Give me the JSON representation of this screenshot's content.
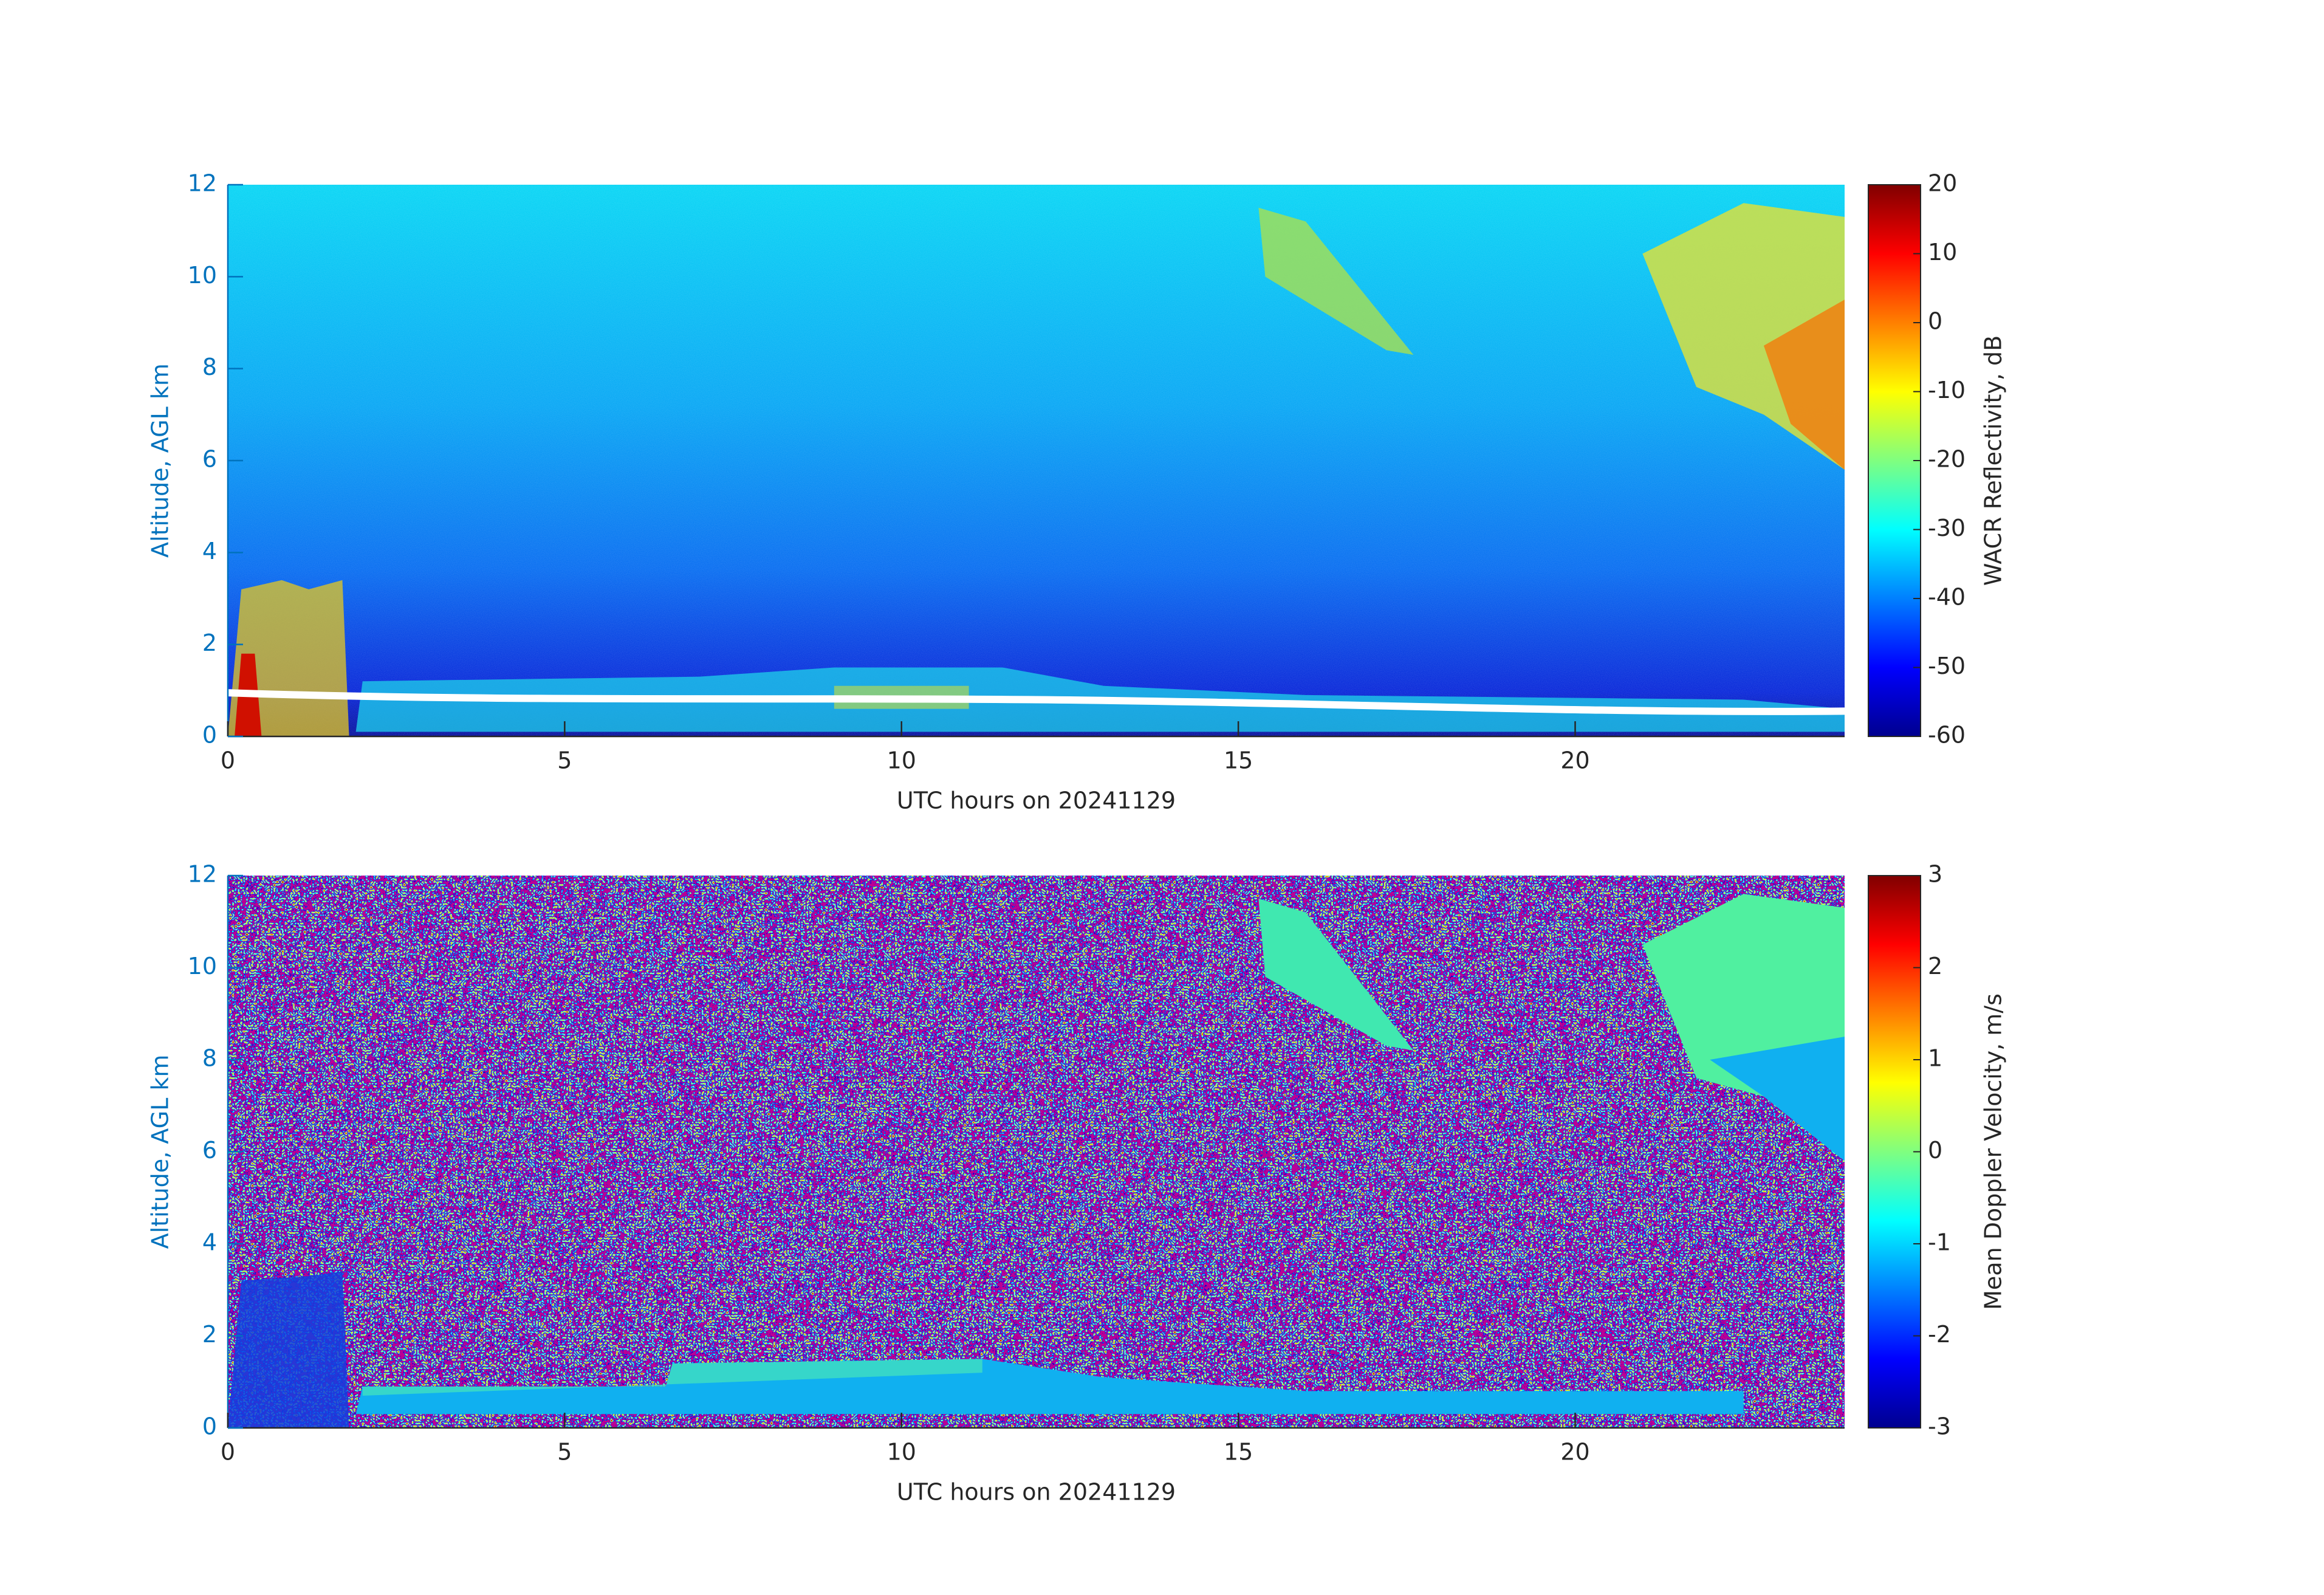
{
  "chart_data": [
    {
      "type": "heatmap",
      "xlabel": "UTC hours on 20241129",
      "ylabel": "Altitude, AGL km",
      "xlim": [
        0,
        24
      ],
      "xticks": [
        0,
        5,
        10,
        15,
        20
      ],
      "ylim": [
        0,
        12
      ],
      "yticks": [
        0,
        2,
        4,
        6,
        8,
        10,
        12
      ],
      "colormap": "jet",
      "colorbar_label": "WACR Reflectivity, dB",
      "clim": [
        -60,
        20
      ],
      "cticks": [
        -60,
        -50,
        -40,
        -30,
        -20,
        -10,
        0,
        10,
        20
      ]
    },
    {
      "type": "heatmap",
      "xlabel": "UTC hours on 20241129",
      "ylabel": "Altitude, AGL km",
      "xlim": [
        0,
        24
      ],
      "xticks": [
        0,
        5,
        10,
        15,
        20
      ],
      "ylim": [
        0,
        12
      ],
      "yticks": [
        0,
        2,
        4,
        6,
        8,
        10,
        12
      ],
      "colormap": "jet",
      "colorbar_label": "Mean Doppler Velocity, m/s",
      "clim": [
        -3,
        3
      ],
      "cticks": [
        -3,
        -2,
        -1,
        0,
        1,
        2,
        3
      ]
    }
  ]
}
